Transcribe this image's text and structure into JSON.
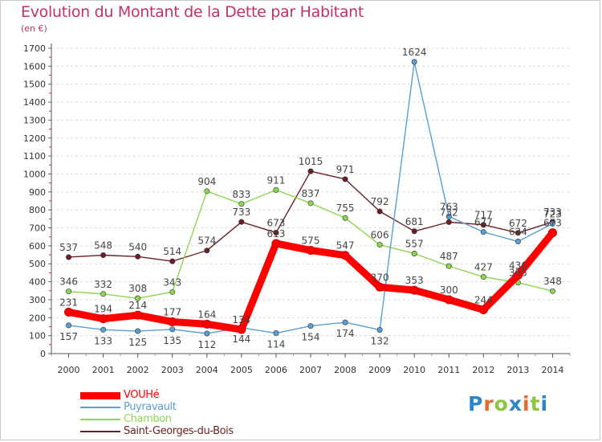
{
  "header": {
    "title": "Evolution du Montant de la Dette par Habitant",
    "unit": "(en €)"
  },
  "logo": {
    "text": "Proxiti",
    "letter_colors": [
      "#2e86c8",
      "#e8682a",
      "#8cc63f",
      "#2e86c8",
      "#e8682a",
      "#8cc63f",
      "#2e86c8"
    ]
  },
  "chart_data": {
    "type": "line",
    "title": "Evolution du Montant de la Dette par Habitant",
    "subtitle": "(en €)",
    "xlabel": "",
    "ylabel": "",
    "x": [
      "2000",
      "2001",
      "2002",
      "2003",
      "2004",
      "2005",
      "2006",
      "2007",
      "2008",
      "2009",
      "2010",
      "2011",
      "2012",
      "2013",
      "2014"
    ],
    "ylim": [
      0,
      1700
    ],
    "yticks": [
      0,
      100,
      200,
      300,
      400,
      500,
      600,
      700,
      800,
      900,
      1000,
      1100,
      1200,
      1300,
      1400,
      1500,
      1600,
      1700
    ],
    "grid": "horizontal",
    "legend_position": "bottom-left",
    "series": [
      {
        "name": "VOUHé",
        "color": "#ff0000",
        "values": [
          231,
          194,
          214,
          177,
          164,
          134,
          613,
          575,
          547,
          370,
          353,
          300,
          244,
          436,
          673
        ],
        "labels": [
          "231",
          "194",
          "214",
          "177",
          "164",
          "134",
          "613",
          "575",
          "547",
          "370",
          "353",
          "300",
          "244",
          "436",
          "673"
        ]
      },
      {
        "name": "Puyravault",
        "color": "#5a9fd4",
        "values": [
          157,
          133,
          125,
          135,
          112,
          144,
          114,
          154,
          174,
          132,
          1624,
          763,
          677,
          624,
          723
        ],
        "labels": [
          "157",
          "133",
          "125",
          "135",
          "112",
          "144",
          "114",
          "154",
          "174",
          "132",
          "1624",
          "763",
          "677",
          "624",
          "723"
        ]
      },
      {
        "name": "Chambon",
        "color": "#8cd650",
        "values": [
          346,
          332,
          308,
          343,
          904,
          833,
          911,
          837,
          755,
          606,
          557,
          487,
          427,
          395,
          348
        ],
        "labels": [
          "346",
          "332",
          "308",
          "343",
          "904",
          "833",
          "911",
          "837",
          "755",
          "606",
          "557",
          "487",
          "427",
          "395",
          "348"
        ]
      },
      {
        "name": "Saint-Georges-du-Bois",
        "color": "#6b1f24",
        "values": [
          537,
          548,
          540,
          514,
          574,
          733,
          673,
          1015,
          971,
          792,
          681,
          732,
          717,
          672,
          733
        ],
        "labels": [
          "537",
          "548",
          "540",
          "514",
          "574",
          "733",
          "673",
          "1015",
          "971",
          "792",
          "681",
          "732",
          "717",
          "672",
          "733"
        ]
      }
    ]
  }
}
